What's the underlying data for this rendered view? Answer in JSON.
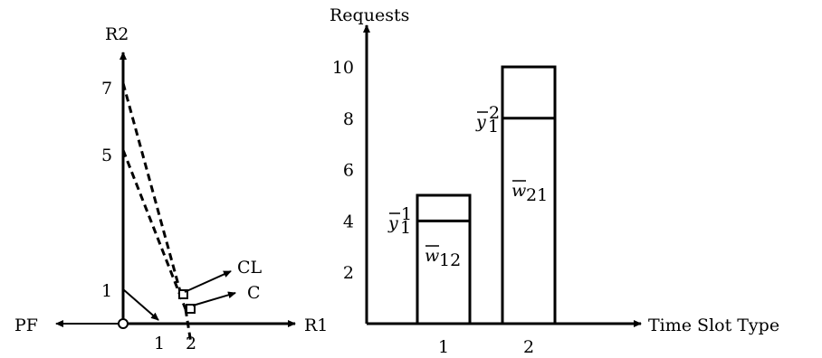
{
  "left_diagram": {
    "y_axis_label": "R2",
    "x_axis_label": "R1",
    "left_label": "PF",
    "y_ticks": [
      "7",
      "5",
      "1"
    ],
    "x_ticks": [
      "1",
      "2"
    ],
    "point_labels": [
      "CL",
      "C"
    ]
  },
  "chart_data": {
    "type": "bar",
    "categories": [
      "1",
      "2"
    ],
    "values": [
      5,
      10
    ],
    "split_values": [
      4,
      8
    ],
    "ylabel": "Requests",
    "xlabel": "Time Slot Type",
    "ylim": [
      0,
      10
    ],
    "y_ticks": [
      "2",
      "4",
      "6",
      "8",
      "10"
    ],
    "annotations": {
      "upper": [
        {
          "base": "y",
          "sub": "1",
          "sup": "1"
        },
        {
          "base": "y",
          "sub": "1",
          "sup": "2"
        }
      ],
      "lower": [
        {
          "base": "w",
          "sub": "12"
        },
        {
          "base": "w",
          "sub": "21"
        }
      ]
    }
  }
}
